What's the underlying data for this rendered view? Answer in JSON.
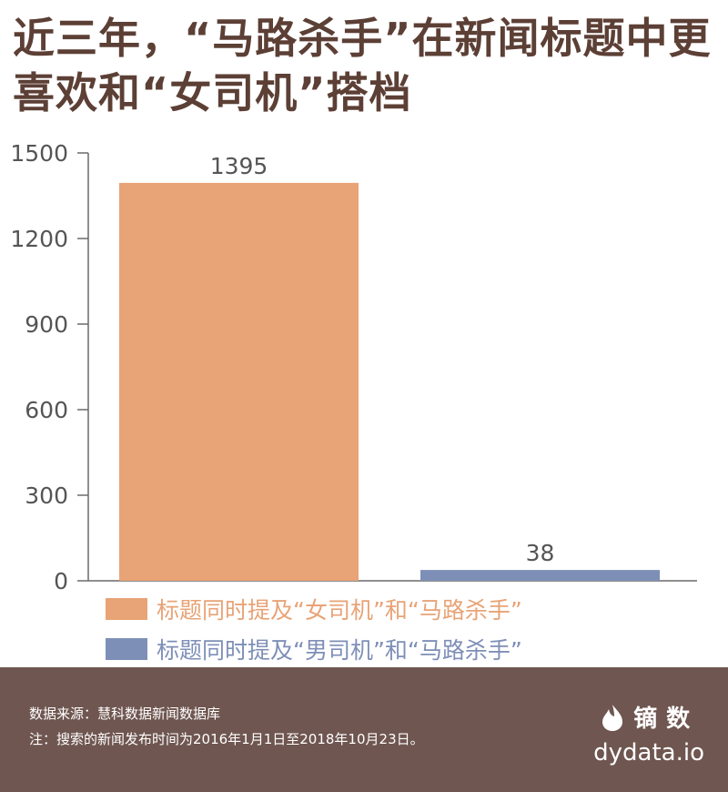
{
  "title": "近三年，“马路杀手”在新闻标题中更喜欢和“女司机”搭档",
  "chart_data": {
    "type": "bar",
    "categories": [
      "标题同时提及“女司机”和“马路杀手”",
      "标题同时提及“男司机”和“马路杀手”"
    ],
    "values": [
      1395,
      38
    ],
    "colors": [
      "#e8a376",
      "#7e8fb7"
    ],
    "data_labels": [
      "1395",
      "38"
    ],
    "ylim": [
      0,
      1500
    ],
    "yticks": [
      0,
      300,
      600,
      900,
      1200,
      1500
    ],
    "grid": false,
    "legend": "bottom-left"
  },
  "footer": {
    "source": "数据来源：慧科数据新闻数据库",
    "note": "注：搜索的新闻发布时间为2016年1月1日至2018年10月23日。",
    "brand_name": "镝数",
    "brand_url": "dydata.io",
    "brand_icon": "flame-logo-icon"
  }
}
